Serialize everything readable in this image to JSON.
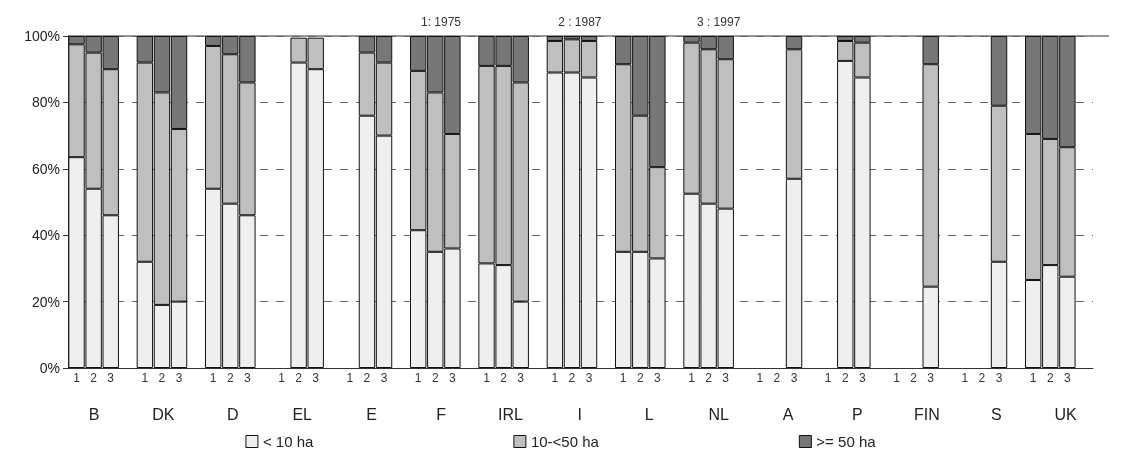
{
  "chart_data": {
    "type": "bar",
    "stacked": true,
    "categories": [
      "1",
      "2",
      "3",
      "1",
      "2",
      "3",
      "1",
      "2",
      "3",
      "1",
      "2",
      "3",
      "1",
      "2",
      "3",
      "1",
      "2",
      "3",
      "1",
      "2",
      "3",
      "1",
      "2",
      "3",
      "1",
      "2",
      "3",
      "1",
      "2",
      "3",
      "1",
      "2",
      "3",
      "1",
      "2",
      "3",
      "1",
      "2",
      "3",
      "1",
      "2",
      "3",
      "1",
      "2",
      "3"
    ],
    "series": [
      {
        "name": "< 10 ha",
        "color": "#efefef",
        "values": [
          63.5,
          54,
          46,
          32,
          19,
          20,
          54,
          49.5,
          46,
          null,
          92,
          90,
          null,
          76,
          70,
          41.5,
          35,
          36,
          31.5,
          31,
          20,
          89,
          89,
          87.5,
          35,
          35,
          33,
          52.5,
          49.5,
          48,
          null,
          null,
          57,
          null,
          92.5,
          87.5,
          null,
          null,
          24.5,
          null,
          null,
          32,
          26.5,
          31,
          27.5
        ]
      },
      {
        "name": "10-<50 ha",
        "color": "#bfbfbf",
        "values": [
          34,
          41,
          44,
          60,
          64,
          52,
          43,
          45,
          40,
          null,
          7.5,
          9.5,
          null,
          19,
          22,
          48,
          48,
          34.5,
          59.5,
          60,
          66,
          9.5,
          10,
          11,
          56.5,
          41,
          27.5,
          45.5,
          46.5,
          45,
          null,
          null,
          39,
          null,
          6,
          10.5,
          null,
          null,
          67,
          null,
          null,
          47,
          44,
          38,
          39
        ]
      },
      {
        "name": ">= 50 ha",
        "color": "#777777",
        "values": [
          2.5,
          5,
          10,
          8,
          17,
          28,
          3,
          5.5,
          14,
          null,
          null,
          null,
          null,
          5,
          8,
          10.5,
          17,
          29.5,
          9,
          9,
          14,
          1.5,
          1,
          1.5,
          8.5,
          24,
          39.5,
          2,
          4,
          7,
          null,
          null,
          4,
          null,
          1.5,
          2,
          null,
          null,
          8.5,
          null,
          null,
          21,
          29.5,
          31,
          33.5
        ]
      }
    ],
    "ylim": [
      0,
      100
    ],
    "yticks": [
      {
        "value": 0,
        "label": "0%"
      },
      {
        "value": 20,
        "label": "20%"
      },
      {
        "value": 40,
        "label": "40%"
      },
      {
        "value": 60,
        "label": "60%"
      },
      {
        "value": 80,
        "label": "80%"
      },
      {
        "value": 100,
        "label": "100%"
      }
    ],
    "grid": "y",
    "legend": "bottom",
    "annotations": [
      "B",
      "DK",
      "D",
      "EL",
      "E",
      "F",
      "IRL",
      "I",
      "L",
      "NL",
      "A",
      "P",
      "FIN",
      "S",
      "UK",
      "1: 1975",
      "2 : 1987",
      "3 : 1997"
    ]
  }
}
